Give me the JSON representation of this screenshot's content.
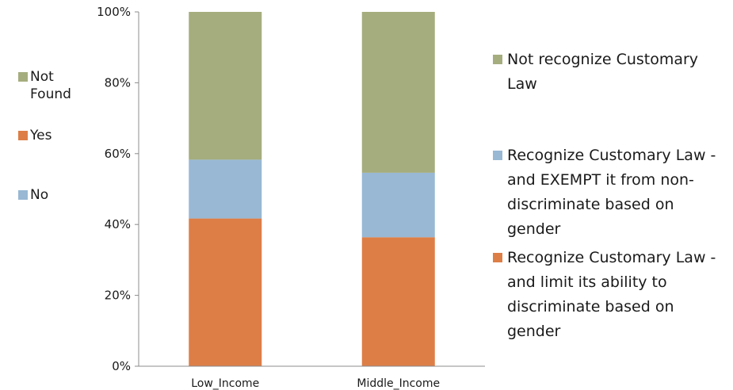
{
  "chart_data": {
    "type": "bar",
    "stacked": true,
    "percent": true,
    "categories": [
      "Low_Income",
      "Middle_Income"
    ],
    "series": [
      {
        "name": "Recognize Customary Law - and limit its ability to discriminate based on gender",
        "color": "#dd7e47",
        "values": [
          41.7,
          36.4
        ]
      },
      {
        "name": "Recognize Customary Law - and EXEMPT it from non-discriminate based on gender",
        "color": "#98b8d4",
        "values": [
          16.6,
          18.2
        ]
      },
      {
        "name": "Not recognize Customary Law",
        "color": "#a5ad7e",
        "values": [
          41.7,
          45.4
        ]
      }
    ],
    "y_ticks": [
      "0%",
      "20%",
      "40%",
      "60%",
      "80%",
      "100%"
    ],
    "ylim": [
      0,
      100
    ],
    "grid": false,
    "legend_position": "right"
  },
  "secondary_legend": {
    "items": [
      {
        "label": "Not Found",
        "color": "#a5ad7e"
      },
      {
        "label": "Yes",
        "color": "#dd7e47"
      },
      {
        "label": "No",
        "color": "#98b8d4"
      }
    ]
  },
  "main_legend": {
    "items": [
      {
        "label": "Not recognize Customary Law",
        "color": "#a5ad7e"
      },
      {
        "label": "Recognize Customary Law - and EXEMPT it from non-discriminate based on gender",
        "color": "#98b8d4"
      },
      {
        "label": "Recognize Customary Law - and limit its ability to discriminate based on gender",
        "color": "#dd7e47"
      }
    ]
  }
}
